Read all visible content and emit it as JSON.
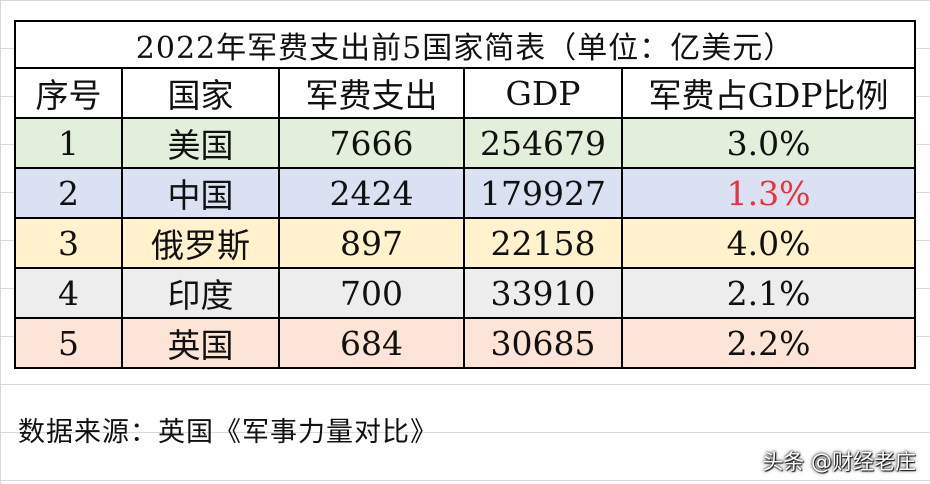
{
  "title": "2022年军费支出前5国家简表（单位：亿美元）",
  "columns": [
    "序号",
    "国家",
    "军费支出",
    "GDP",
    "军费占GDP比例"
  ],
  "rows": [
    {
      "rank": "1",
      "country": "美国",
      "spending": "7666",
      "gdp": "254679",
      "ratio": "3.0%",
      "bg": "#e2efda"
    },
    {
      "rank": "2",
      "country": "中国",
      "spending": "2424",
      "gdp": "179927",
      "ratio": "1.3%",
      "bg": "#d9e1f2"
    },
    {
      "rank": "3",
      "country": "俄罗斯",
      "spending": "897",
      "gdp": "22158",
      "ratio": "4.0%",
      "bg": "#fff2cc"
    },
    {
      "rank": "4",
      "country": "印度",
      "spending": "700",
      "gdp": "33910",
      "ratio": "2.1%",
      "bg": "#ededed"
    },
    {
      "rank": "5",
      "country": "英国",
      "spending": "684",
      "gdp": "30685",
      "ratio": "2.2%",
      "bg": "#fce4d6"
    }
  ],
  "highlight_color": "#e8323c",
  "source": "数据来源：英国《军事力量对比》",
  "watermark": "头条 @财经老庄"
}
